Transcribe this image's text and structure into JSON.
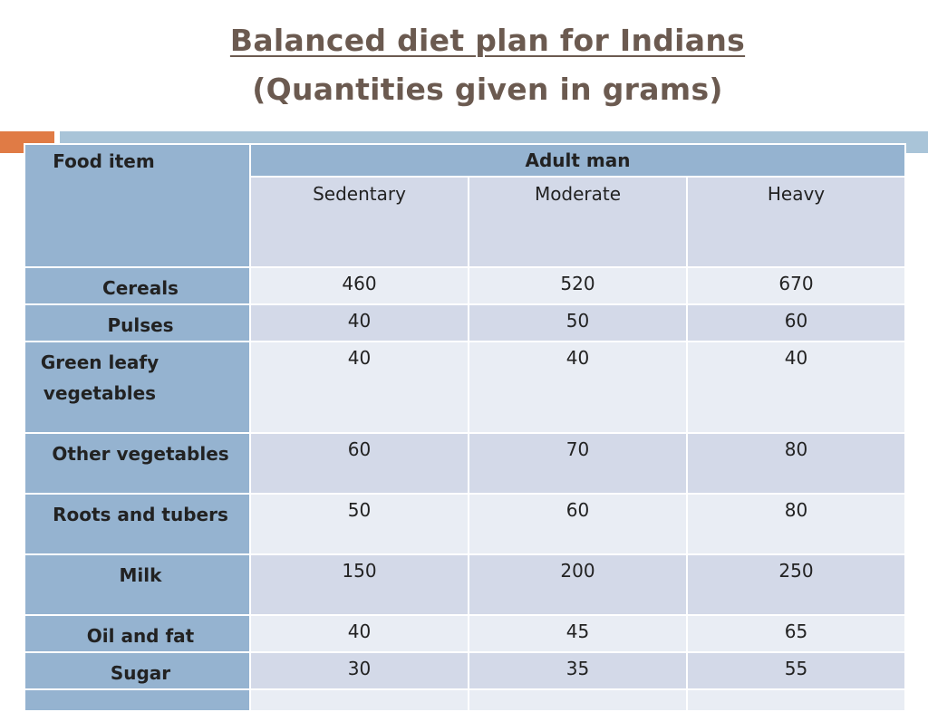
{
  "title": {
    "line1": "Balanced diet plan for Indians",
    "line2": "(Quantities given in grams)"
  },
  "table": {
    "food_header": "Food item",
    "group_header": "Adult man",
    "subheaders": [
      "Sedentary",
      "Moderate",
      "Heavy"
    ],
    "rows": [
      {
        "item": "Cereals",
        "values": [
          "460",
          "520",
          "670"
        ]
      },
      {
        "item": "Pulses",
        "values": [
          "40",
          "50",
          "60"
        ]
      },
      {
        "item": "Green leafy vegetables",
        "values": [
          "40",
          "40",
          "40"
        ]
      },
      {
        "item": "Other vegetables",
        "values": [
          "60",
          "70",
          "80"
        ]
      },
      {
        "item": "Roots and tubers",
        "values": [
          "50",
          "60",
          "80"
        ]
      },
      {
        "item": "Milk",
        "values": [
          "150",
          "200",
          "250"
        ]
      },
      {
        "item": "Oil and fat",
        "values": [
          "40",
          "45",
          "65"
        ]
      },
      {
        "item": "Sugar",
        "values": [
          "30",
          "35",
          "55"
        ]
      },
      {
        "item": "",
        "values": [
          "",
          "",
          ""
        ]
      }
    ]
  },
  "colors": {
    "title": "#6b5a50",
    "accent_orange": "#e07b45",
    "accent_blue": "#a9c4d8",
    "header_fill": "#95b3d0",
    "row_dark": "#d3d9e8",
    "row_light": "#e9edf4"
  }
}
